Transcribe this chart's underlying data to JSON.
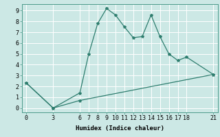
{
  "xlabel": "Humidex (Indice chaleur)",
  "bg_color": "#cce8e5",
  "line_color": "#2e7d6e",
  "grid_color": "#b0d4d0",
  "line1_x": [
    0,
    3,
    6,
    7,
    8,
    9,
    10,
    11,
    12,
    13,
    14,
    15,
    16,
    17,
    18,
    21
  ],
  "line1_y": [
    2.3,
    0.0,
    1.4,
    5.0,
    7.8,
    9.2,
    8.6,
    7.5,
    6.5,
    6.6,
    8.6,
    6.6,
    5.0,
    4.4,
    4.7,
    3.1
  ],
  "line2_x": [
    0,
    3,
    6,
    21
  ],
  "line2_y": [
    2.3,
    0.0,
    0.7,
    3.1
  ],
  "xlim": [
    -0.5,
    21.5
  ],
  "ylim": [
    -0.4,
    9.6
  ],
  "yticks": [
    0,
    1,
    2,
    3,
    4,
    5,
    6,
    7,
    8,
    9
  ],
  "xticks": [
    0,
    3,
    6,
    7,
    8,
    9,
    10,
    11,
    12,
    13,
    14,
    15,
    16,
    17,
    18,
    21
  ],
  "markersize": 3,
  "linewidth": 0.9,
  "fontsize_label": 6.5,
  "fontsize_tick": 6.0
}
